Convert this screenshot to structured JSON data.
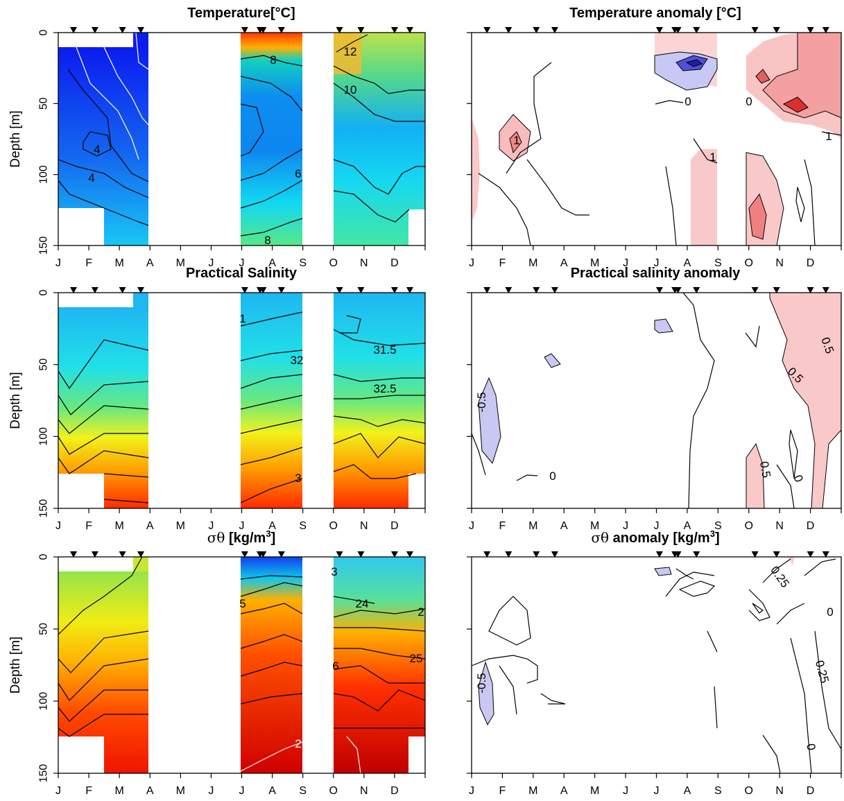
{
  "chart_data": [
    {
      "type": "heatmap",
      "title": "Temperature[°C]",
      "ylabel": "Depth [m]",
      "colorscale": "blue-to-red",
      "ylim": [
        150,
        0
      ],
      "yticks": [
        "0",
        "50",
        "100",
        "150"
      ],
      "month_labels": [
        "J",
        "F",
        "M",
        "A",
        "M",
        "J",
        "J",
        "A",
        "S",
        "O",
        "N",
        "D"
      ],
      "contour_labels": [
        "4",
        "4",
        "6",
        "8",
        "8",
        "10",
        "12"
      ],
      "sample_months": [
        0.5,
        1.2,
        2.1,
        2.7,
        6.1,
        6.6,
        6.7,
        7.3,
        9.2,
        9.9,
        11.0,
        11.5
      ],
      "data_blocks": [
        {
          "month_start": 0.0,
          "month_end": 3.0,
          "note": "Jan–Mar coverage"
        },
        {
          "month_start": 6.0,
          "month_end": 8.0,
          "note": "Jul–Aug coverage"
        },
        {
          "month_start": 9.0,
          "month_end": 12.0,
          "note": "Oct–Dec coverage"
        }
      ]
    },
    {
      "type": "heatmap",
      "title": "Temperature anomaly [°C]",
      "colorscale": "blue-white-red",
      "ylim": [
        150,
        0
      ],
      "month_labels": [
        "J",
        "F",
        "M",
        "A",
        "M",
        "J",
        "J",
        "A",
        "S",
        "O",
        "N",
        "D"
      ],
      "contour_labels": [
        "1",
        "0",
        "1",
        "1",
        "0"
      ],
      "sample_months": [
        0.5,
        1.2,
        2.1,
        2.7,
        6.1,
        6.6,
        6.7,
        7.3,
        9.2,
        9.9,
        11.0,
        11.5
      ]
    },
    {
      "type": "heatmap",
      "title": "Practical Salinity",
      "ylabel": "Depth [m]",
      "colorscale": "blue-to-red",
      "ylim": [
        150,
        0
      ],
      "yticks": [
        "0",
        "50",
        "100",
        "150"
      ],
      "month_labels": [
        "J",
        "F",
        "M",
        "A",
        "M",
        "J",
        "J",
        "A",
        "S",
        "O",
        "N",
        "D"
      ],
      "contour_labels": [
        "1",
        "32",
        "3",
        "31.5",
        "32.5"
      ],
      "sample_months": [
        0.5,
        1.2,
        2.1,
        2.7,
        6.1,
        6.6,
        6.7,
        7.3,
        9.2,
        9.9,
        11.0,
        11.5
      ]
    },
    {
      "type": "heatmap",
      "title": "Practical salinity anomaly",
      "colorscale": "blue-white-red",
      "ylim": [
        150,
        0
      ],
      "month_labels": [
        "J",
        "F",
        "M",
        "A",
        "M",
        "J",
        "J",
        "A",
        "S",
        "O",
        "N",
        "D"
      ],
      "contour_labels": [
        "-0.5",
        "0",
        "0.5",
        "0.5",
        "0.5",
        "0"
      ],
      "sample_months": [
        0.5,
        1.2,
        2.1,
        2.7,
        6.1,
        6.6,
        6.7,
        7.3,
        9.2,
        9.9,
        11.0,
        11.5
      ]
    },
    {
      "type": "heatmap",
      "title_symbol": "σθ",
      "title_units": " [kg/m",
      "title_sup": "3",
      "title_close": "]",
      "ylabel": "Depth [m]",
      "colorscale": "blue-to-red",
      "ylim": [
        150,
        0
      ],
      "yticks": [
        "0",
        "50",
        "100",
        "150"
      ],
      "month_labels": [
        "J",
        "F",
        "M",
        "A",
        "M",
        "J",
        "J",
        "A",
        "S",
        "O",
        "N",
        "D"
      ],
      "contour_labels": [
        "3",
        "5",
        "24",
        "2",
        "6",
        "25",
        "2"
      ],
      "sample_months": [
        0.5,
        1.2,
        2.1,
        2.7,
        6.1,
        6.6,
        6.7,
        7.3,
        9.2,
        9.9,
        11.0,
        11.5
      ]
    },
    {
      "type": "heatmap",
      "title_symbol": "σθ",
      "title_units": " anomaly [kg/m",
      "title_sup": "3",
      "title_close": "]",
      "colorscale": "blue-white-red",
      "ylim": [
        150,
        0
      ],
      "month_labels": [
        "J",
        "F",
        "M",
        "A",
        "M",
        "J",
        "J",
        "A",
        "S",
        "O",
        "N",
        "D"
      ],
      "contour_labels": [
        "-0.5",
        "0.25",
        "0.25",
        "0",
        "0"
      ],
      "sample_months": [
        0.5,
        1.2,
        2.1,
        2.7,
        6.1,
        6.6,
        6.7,
        7.3,
        9.2,
        9.9,
        11.0,
        11.5
      ]
    }
  ]
}
